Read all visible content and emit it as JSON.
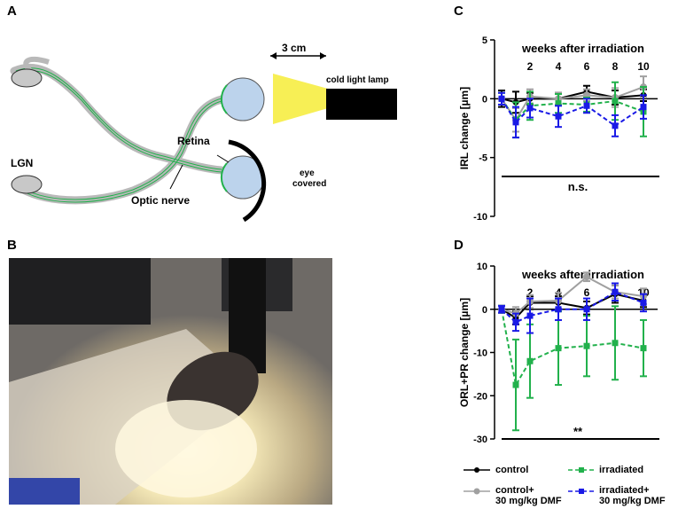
{
  "panels": {
    "a": {
      "letter": "A",
      "distance": "3 cm",
      "lamp": "cold light lamp",
      "retina": "Retina",
      "lgn": "LGN",
      "optic_nerve": "Optic nerve",
      "eye_covered_1": "eye",
      "eye_covered_2": "covered"
    },
    "b": {
      "letter": "B",
      "photo": "mouse-under-cold-light-lamp-photo"
    },
    "c": {
      "letter": "C"
    },
    "d": {
      "letter": "D"
    }
  },
  "legend": {
    "control": "control",
    "irradiated": "irradiated",
    "control_dmf_1": "control+",
    "control_dmf_2": "30 mg/kg DMF",
    "irradiated_dmf_1": "irradiated+",
    "irradiated_dmf_2": "30 mg/kg DMF"
  },
  "colors": {
    "control": "#000000",
    "irradiated": "#22b14c",
    "control_dmf": "#a0a0a0",
    "irradiated_dmf": "#1a1ae6"
  },
  "chart_data": [
    {
      "type": "line",
      "panel": "C",
      "title": "weeks after irradiation",
      "ylabel": "IRL change [µm]",
      "xlabel": "",
      "ylim": [
        -10,
        5
      ],
      "yticks": [
        5,
        0,
        -5,
        -10
      ],
      "x": [
        0,
        1,
        2,
        4,
        6,
        8,
        10
      ],
      "x_tick_labels": [
        "2",
        "4",
        "6",
        "8",
        "10"
      ],
      "x_tick_positions": [
        2,
        4,
        6,
        8,
        10
      ],
      "significance": "n.s.",
      "series": [
        {
          "name": "control",
          "style": "solid",
          "values": [
            0,
            -0.3,
            0,
            0,
            0.6,
            0.1,
            0.3
          ],
          "errors": [
            0.7,
            0.9,
            0.5,
            0.5,
            0.5,
            0.6,
            0.5
          ]
        },
        {
          "name": "control+ 30 mg/kg DMF",
          "style": "solid",
          "values": [
            0,
            -1.8,
            0.2,
            0,
            0.3,
            0.1,
            1.0
          ],
          "errors": [
            0.5,
            1.0,
            0.6,
            0.5,
            0.5,
            0.8,
            0.9
          ]
        },
        {
          "name": "irradiated",
          "style": "dashed",
          "values": [
            0,
            -1.8,
            -0.6,
            -0.4,
            -0.5,
            -0.2,
            -1.1
          ],
          "errors": [
            0.5,
            1.5,
            1.2,
            0.8,
            0.6,
            1.6,
            2.1
          ]
        },
        {
          "name": "irradiated+ 30 mg/kg DMF",
          "style": "dashed",
          "values": [
            0,
            -2.0,
            -0.8,
            -1.5,
            -0.6,
            -2.3,
            -0.7
          ],
          "errors": [
            0.5,
            1.3,
            0.8,
            0.9,
            0.6,
            0.9,
            1.0
          ]
        }
      ]
    },
    {
      "type": "line",
      "panel": "D",
      "title": "weeks after irradiation",
      "ylabel": "ORL+PR change [µm]",
      "xlabel": "",
      "ylim": [
        -30,
        10
      ],
      "yticks": [
        10,
        0,
        -10,
        -20,
        -30
      ],
      "x": [
        0,
        1,
        2,
        4,
        6,
        8,
        10
      ],
      "x_tick_labels": [
        "2",
        "4",
        "6",
        "8",
        "10"
      ],
      "x_tick_positions": [
        2,
        4,
        6,
        8,
        10
      ],
      "significance": "**",
      "series": [
        {
          "name": "control",
          "style": "solid",
          "values": [
            0,
            -2.0,
            1.5,
            1.5,
            0.3,
            3.5,
            2.0
          ],
          "errors": [
            0.8,
            1.5,
            1.5,
            1.5,
            1.5,
            2.0,
            1.5
          ]
        },
        {
          "name": "control+ 30 mg/kg DMF",
          "style": "solid",
          "values": [
            0,
            -1.0,
            1.8,
            2.0,
            7.5,
            4.0,
            3.0
          ],
          "errors": [
            0.8,
            1.5,
            1.5,
            1.8,
            1.0,
            1.5,
            1.8
          ]
        },
        {
          "name": "irradiated",
          "style": "dashed",
          "values": [
            0,
            -17.5,
            -12.0,
            -9.0,
            -8.5,
            -7.8,
            -9.0
          ],
          "errors": [
            0.8,
            10.5,
            8.5,
            8.5,
            7.0,
            8.5,
            6.5
          ]
        },
        {
          "name": "irradiated+ 30 mg/kg DMF",
          "style": "dashed",
          "values": [
            0,
            -3.0,
            -1.5,
            0,
            0,
            4.0,
            1.5
          ],
          "errors": [
            0.8,
            2.0,
            4.0,
            2.5,
            2.5,
            2.0,
            2.0
          ]
        }
      ]
    }
  ]
}
